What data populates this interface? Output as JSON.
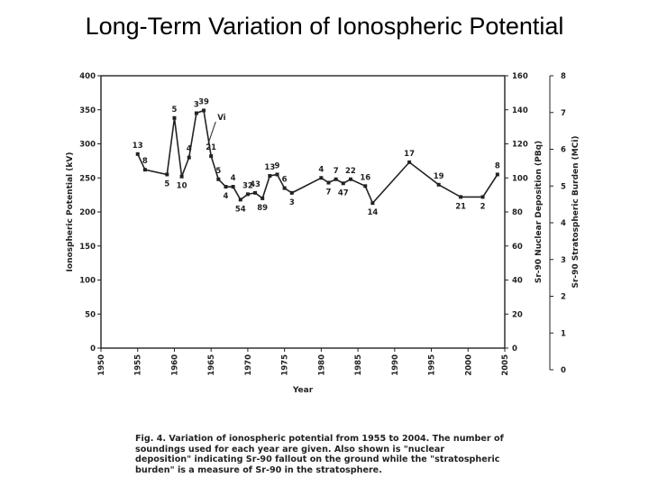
{
  "page": {
    "title": "Long-Term Variation of Ionospheric Potential"
  },
  "caption": {
    "lines": [
      "Fig. 4.  Variation of ionospheric potential from 1955 to 2004.  The number of",
      "soundings used for each year are given.  Also shown is \"nuclear",
      "deposition\" indicating Sr-90 fallout on the ground while the \"stratospheric",
      "burden\" is a measure of Sr-90 in the stratosphere."
    ]
  },
  "chart_data": {
    "type": "line",
    "title": "",
    "xlabel": "Year",
    "ylabel": "Ionospheric Potential (kV)",
    "y2label": "Sr-90 Nuclear Deposition (PBq)",
    "y3label": "Sr-90 Stratospheric Burden (MCi)",
    "xlim": [
      1950,
      2005
    ],
    "ylim": [
      0,
      400
    ],
    "y2lim": [
      0,
      160
    ],
    "y3lim": [
      0,
      8
    ],
    "xticks": [
      "1950",
      "1955",
      "1960",
      "1965",
      "1970",
      "1975",
      "1980",
      "1985",
      "1990",
      "1995",
      "2000",
      "2005"
    ],
    "yticks": [
      "0",
      "50",
      "100",
      "150",
      "200",
      "250",
      "300",
      "350",
      "400"
    ],
    "y2ticks": [
      "0",
      "20",
      "40",
      "60",
      "80",
      "100",
      "120",
      "140",
      "160"
    ],
    "y3ticks": [
      "0",
      "1",
      "2",
      "3",
      "4",
      "5",
      "6",
      "7",
      "8"
    ],
    "grid": false,
    "series": [
      {
        "name": "Ionospheric potential",
        "x": [
          1955,
          1956,
          1959,
          1960,
          1961,
          1962,
          1963,
          1964,
          1965,
          1966,
          1967,
          1968,
          1969,
          1970,
          1971,
          1972,
          1973,
          1974,
          1975,
          1976,
          1980,
          1981,
          1982,
          1983,
          1984,
          1986,
          1987,
          1992,
          1996,
          1999,
          2002,
          2004
        ],
        "values": [
          285,
          262,
          255,
          338,
          252,
          280,
          345,
          349,
          282,
          248,
          237,
          237,
          218,
          226,
          228,
          220,
          253,
          255,
          235,
          228,
          250,
          243,
          248,
          242,
          248,
          238,
          213,
          273,
          240,
          222,
          222,
          255
        ],
        "point_labels": [
          "13",
          "8",
          "5",
          "5",
          "10",
          "4",
          "3",
          "39",
          "21",
          "5",
          "4",
          "4",
          "54",
          "32",
          "43",
          "89",
          "13",
          "9",
          "6",
          "3",
          "4",
          "7",
          "7",
          "47",
          "22",
          "16",
          "14",
          "17",
          "19",
          "21",
          "2",
          "8"
        ]
      }
    ],
    "annotations": [
      {
        "text": "Vi",
        "x": 1965.5,
        "y": 335
      }
    ]
  }
}
